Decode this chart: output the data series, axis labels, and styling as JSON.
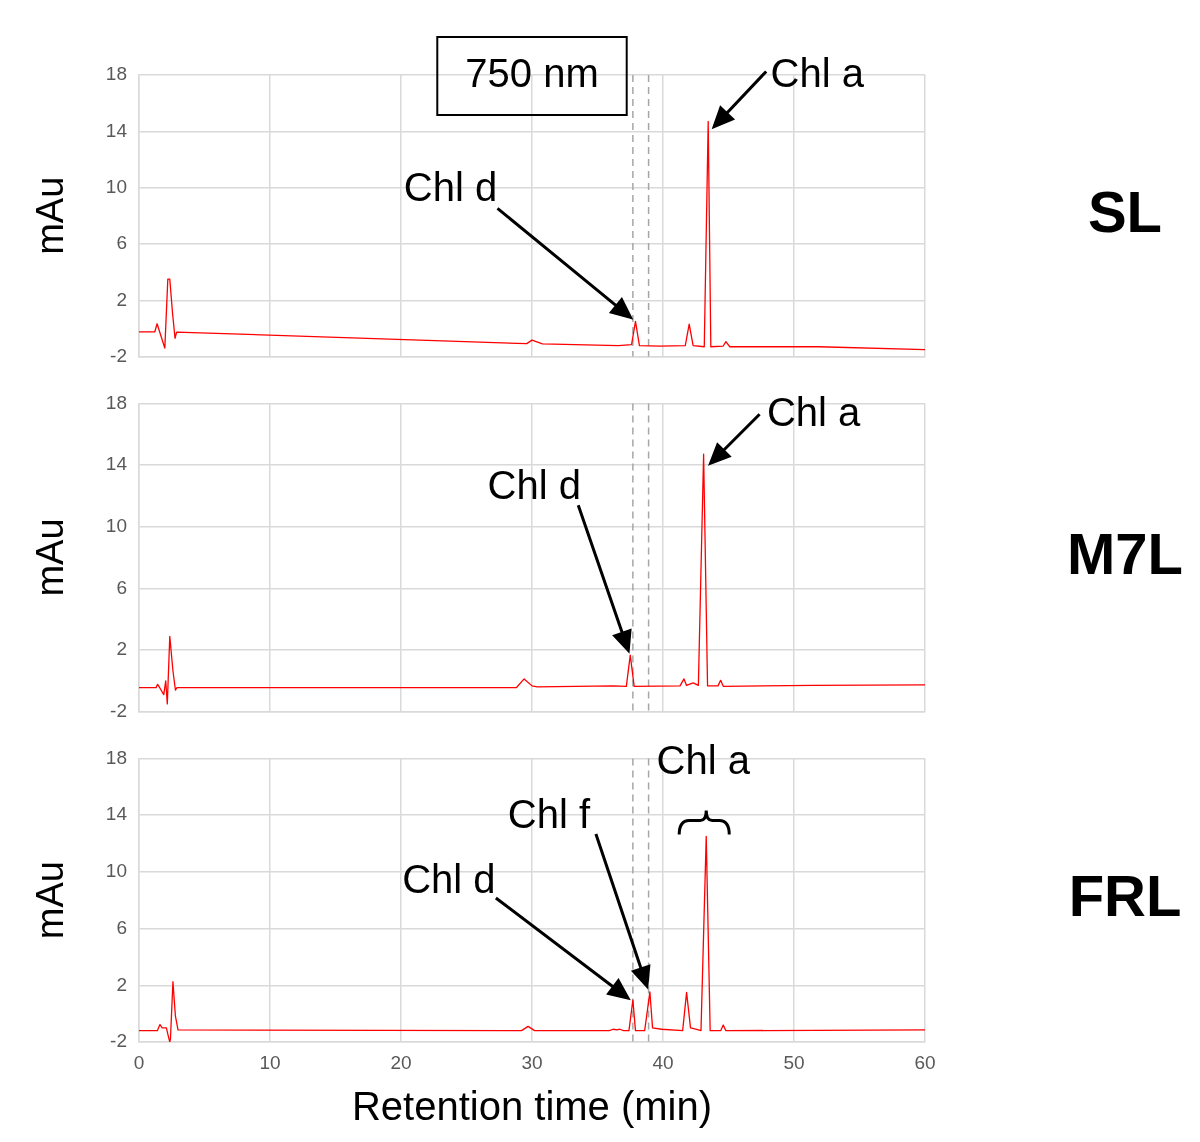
{
  "chart_data": [
    {
      "type": "line",
      "ylabel": "mAu",
      "xlim": [
        0,
        60
      ],
      "xticks": [
        0,
        10,
        20,
        30,
        40,
        50,
        60
      ],
      "ylim": [
        -2,
        18
      ],
      "yticks": [
        -2,
        2,
        6,
        10,
        14,
        18
      ],
      "grid": true,
      "tick_labels": "y",
      "marker": "none",
      "series": [
        {
          "color": "#ff0000",
          "x": [
            0,
            1.2,
            1.38,
            1.58,
            1.97,
            2.2,
            2.35,
            2.56,
            2.75,
            2.87,
            29.6,
            30.0,
            30.8,
            36.6,
            37.6,
            37.9,
            38.2,
            39.8,
            41.7,
            42.0,
            42.3,
            43.15,
            43.45,
            43.65,
            44.6,
            44.8,
            45.1,
            51.9,
            60
          ],
          "values": [
            -0.25,
            -0.25,
            0.33,
            -0.25,
            -1.4,
            3.5,
            3.5,
            1.08,
            -0.7,
            -0.26,
            -1.08,
            -0.83,
            -1.1,
            -1.22,
            -1.15,
            0.5,
            -1.22,
            -1.25,
            -1.22,
            0.3,
            -1.22,
            -1.3,
            14.7,
            -1.3,
            -1.25,
            -0.94,
            -1.3,
            -1.3,
            -1.5
          ]
        }
      ],
      "ref_lines": [
        {
          "axis": "x",
          "value": 37.7,
          "color": "#a6a6a6",
          "line_style": "dashed"
        },
        {
          "axis": "x",
          "value": 38.9,
          "color": "#a6a6a6",
          "line_style": "dashed"
        }
      ],
      "annotations": [
        "SL",
        "750 nm",
        {
          "text": "Chl d",
          "x": 37.9,
          "y": 0.5
        },
        {
          "text": "Chl a",
          "x": 43.45,
          "y": 14.7
        }
      ]
    },
    {
      "type": "line",
      "ylabel": "mAu",
      "xlim": [
        0,
        60
      ],
      "xticks": [
        0,
        10,
        20,
        30,
        40,
        50,
        60
      ],
      "ylim": [
        -2,
        18
      ],
      "yticks": [
        -2,
        2,
        6,
        10,
        14,
        18
      ],
      "grid": true,
      "tick_labels": "y",
      "marker": "none",
      "series": [
        {
          "color": "#ff0000",
          "x": [
            0,
            1.3,
            1.42,
            1.58,
            1.89,
            2.04,
            2.16,
            2.35,
            2.59,
            2.78,
            2.9,
            28.8,
            29.4,
            30.0,
            30.4,
            36.2,
            37.2,
            37.5,
            37.8,
            41.3,
            41.6,
            41.8,
            42.3,
            42.7,
            43.1,
            43.4,
            44.2,
            44.4,
            44.6,
            51.5,
            60
          ],
          "values": [
            -0.45,
            -0.45,
            -0.23,
            -0.45,
            -0.9,
            0.0,
            -1.5,
            2.88,
            0.65,
            -0.6,
            -0.45,
            -0.45,
            0.12,
            -0.33,
            -0.39,
            -0.33,
            -0.36,
            1.66,
            -0.36,
            -0.33,
            0.12,
            -0.3,
            -0.14,
            -0.3,
            14.7,
            -0.33,
            -0.33,
            0.03,
            -0.36,
            -0.3,
            -0.27
          ]
        }
      ],
      "ref_lines": [
        {
          "axis": "x",
          "value": 37.7,
          "color": "#a6a6a6",
          "line_style": "dashed"
        },
        {
          "axis": "x",
          "value": 38.9,
          "color": "#a6a6a6",
          "line_style": "dashed"
        }
      ],
      "annotations": [
        "M7L",
        {
          "text": "Chl d",
          "x": 37.5,
          "y": 1.66
        },
        {
          "text": "Chl a",
          "x": 43.1,
          "y": 14.7
        }
      ]
    },
    {
      "type": "line",
      "xlabel": "Retention time (min)",
      "ylabel": "mAu",
      "xlim": [
        0,
        60
      ],
      "xticks": [
        0,
        10,
        20,
        30,
        40,
        50,
        60
      ],
      "ylim": [
        -2,
        18
      ],
      "yticks": [
        -2,
        2,
        6,
        10,
        14,
        18
      ],
      "grid": true,
      "marker": "none",
      "series": [
        {
          "color": "#ff0000",
          "x": [
            0,
            1.4,
            1.6,
            1.77,
            2.09,
            2.2,
            2.35,
            2.4,
            2.59,
            2.78,
            2.98,
            29.2,
            29.7,
            30.2,
            35.9,
            36.2,
            36.5,
            36.7,
            37.0,
            37.4,
            37.7,
            37.9,
            38.6,
            39.0,
            39.2,
            39.9,
            41.5,
            41.8,
            42.1,
            42.5,
            42.9,
            43.3,
            43.6,
            44.4,
            44.6,
            44.8,
            60
          ],
          "values": [
            -1.2,
            -1.2,
            -0.77,
            -1.0,
            -1.0,
            -1.44,
            -2,
            -1.8,
            2.25,
            -0.18,
            -1.15,
            -1.2,
            -0.9,
            -1.2,
            -1.2,
            -1.1,
            -1.15,
            -1.1,
            -1.2,
            -1.2,
            0.96,
            -1.2,
            -1.2,
            1.53,
            -1.0,
            -1.1,
            -1.2,
            1.5,
            -1.0,
            -1.1,
            -1.2,
            12.5,
            -1.2,
            -1.2,
            -0.8,
            -1.2,
            -1.15
          ]
        }
      ],
      "ref_lines": [
        {
          "axis": "x",
          "value": 37.7,
          "color": "#a6a6a6",
          "line_style": "dashed"
        },
        {
          "axis": "x",
          "value": 38.9,
          "color": "#a6a6a6",
          "line_style": "dashed"
        }
      ],
      "annotations": [
        "FRL",
        {
          "text": "Chl d",
          "x": 37.7,
          "y": 0.96
        },
        {
          "text": "Chl f",
          "x": 39.0,
          "y": 1.53
        },
        {
          "text": "Chl a",
          "x": 43.3,
          "y": 12.5
        }
      ]
    }
  ]
}
